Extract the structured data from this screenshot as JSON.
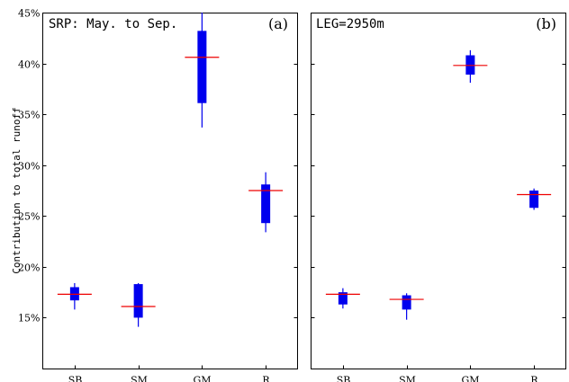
{
  "figure": {
    "ylabel": "Contribution to total runoff"
  },
  "chart_data": [
    {
      "type": "box",
      "panel_label": "(a)",
      "annotation": "SRP: May. to Sep.",
      "categories": [
        "SB",
        "SM",
        "GM",
        "R"
      ],
      "ylim": [
        10,
        45
      ],
      "yticks": [
        15,
        20,
        25,
        30,
        35,
        40,
        45
      ],
      "ytick_labels": [
        "15%",
        "20%",
        "25%",
        "30%",
        "35%",
        "40%",
        "45%"
      ],
      "y_axis_side": "left",
      "ylabel": "Contribution to total runoff",
      "boxes": [
        {
          "category": "SB",
          "whisker_low": 15.8,
          "q1": 16.7,
          "q3": 18.0,
          "whisker_high": 18.4,
          "median": 17.3
        },
        {
          "category": "SM",
          "whisker_low": 14.1,
          "q1": 15.0,
          "q3": 18.3,
          "whisker_high": 18.4,
          "median": 16.1
        },
        {
          "category": "GM",
          "whisker_low": 33.7,
          "q1": 36.1,
          "q3": 43.2,
          "whisker_high": 45.0,
          "median": 40.6
        },
        {
          "category": "R",
          "whisker_low": 23.4,
          "q1": 24.3,
          "q3": 28.1,
          "whisker_high": 29.3,
          "median": 27.5
        }
      ],
      "colors": {
        "box": "#0000ee",
        "median": "#ee0000"
      }
    },
    {
      "type": "box",
      "panel_label": "(b)",
      "annotation": "LEG=2950m",
      "categories": [
        "SB",
        "SM",
        "GM",
        "R"
      ],
      "ylim": [
        10,
        45
      ],
      "yticks": [
        15,
        20,
        25,
        30,
        35,
        40,
        45
      ],
      "y_axis_side": "right",
      "boxes": [
        {
          "category": "SB",
          "whisker_low": 15.9,
          "q1": 16.3,
          "q3": 17.5,
          "whisker_high": 17.9,
          "median": 17.3
        },
        {
          "category": "SM",
          "whisker_low": 14.8,
          "q1": 15.8,
          "q3": 17.2,
          "whisker_high": 17.4,
          "median": 16.8
        },
        {
          "category": "GM",
          "whisker_low": 38.1,
          "q1": 38.9,
          "q3": 40.8,
          "whisker_high": 41.3,
          "median": 39.8
        },
        {
          "category": "R",
          "whisker_low": 25.6,
          "q1": 25.8,
          "q3": 27.5,
          "whisker_high": 27.7,
          "median": 27.1
        }
      ],
      "colors": {
        "box": "#0000ee",
        "median": "#ee0000"
      }
    }
  ]
}
